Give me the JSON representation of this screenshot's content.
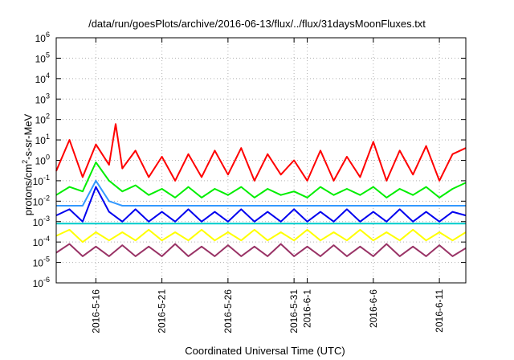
{
  "chart_data": {
    "type": "line",
    "title": "/data/run/goesPlots/archive/2016-06-13/flux/../flux/31daysMoonFluxes.txt",
    "xlabel": "Coordinated Universal Time (UTC)",
    "ylabel": "protons/cm2-s-sr-MeV",
    "y_scale": "log",
    "ylim": [
      1e-06,
      1000000.0
    ],
    "y_ticks": [
      {
        "value": 1e-06,
        "base": "10",
        "exp": "-6"
      },
      {
        "value": 1e-05,
        "base": "10",
        "exp": "-5"
      },
      {
        "value": 0.0001,
        "base": "10",
        "exp": "-4"
      },
      {
        "value": 0.001,
        "base": "10",
        "exp": "-3"
      },
      {
        "value": 0.01,
        "base": "10",
        "exp": "-2"
      },
      {
        "value": 0.1,
        "base": "10",
        "exp": "-1"
      },
      {
        "value": 1,
        "base": "10",
        "exp": "0"
      },
      {
        "value": 10,
        "base": "10",
        "exp": "1"
      },
      {
        "value": 100,
        "base": "10",
        "exp": "2"
      },
      {
        "value": 1000,
        "base": "10",
        "exp": "3"
      },
      {
        "value": 10000,
        "base": "10",
        "exp": "4"
      },
      {
        "value": 100000,
        "base": "10",
        "exp": "5"
      },
      {
        "value": 1000000,
        "base": "10",
        "exp": "6"
      }
    ],
    "xlim": [
      "2016-05-13",
      "2016-06-13"
    ],
    "x_ticks": [
      {
        "date": "2016-05-16",
        "label": "2016-5-16"
      },
      {
        "date": "2016-05-21",
        "label": "2016-5-21"
      },
      {
        "date": "2016-05-26",
        "label": "2016-5-26"
      },
      {
        "date": "2016-05-31",
        "label": "2016-5-31"
      },
      {
        "date": "2016-06-01",
        "label": "2016-6-1"
      },
      {
        "date": "2016-06-06",
        "label": "2016-6-6"
      },
      {
        "date": "2016-06-11",
        "label": "2016-6-11"
      }
    ],
    "grid": true,
    "legend": "none",
    "series": [
      {
        "color": "#ff0000",
        "points": [
          [
            "2016-05-13",
            0.3
          ],
          [
            "2016-05-14",
            10
          ],
          [
            "2016-05-15",
            0.15
          ],
          [
            "2016-05-16",
            6
          ],
          [
            "2016-05-17",
            0.6
          ],
          [
            "2016-05-17T12:00",
            60
          ],
          [
            "2016-05-18",
            0.4
          ],
          [
            "2016-05-19",
            3
          ],
          [
            "2016-05-20",
            0.15
          ],
          [
            "2016-05-21",
            1.5
          ],
          [
            "2016-05-22",
            0.1
          ],
          [
            "2016-05-23",
            2
          ],
          [
            "2016-05-24",
            0.15
          ],
          [
            "2016-05-25",
            3
          ],
          [
            "2016-05-26",
            0.2
          ],
          [
            "2016-05-27",
            4
          ],
          [
            "2016-05-28",
            0.1
          ],
          [
            "2016-05-29",
            2
          ],
          [
            "2016-05-30",
            0.2
          ],
          [
            "2016-05-31",
            1
          ],
          [
            "2016-06-01",
            0.1
          ],
          [
            "2016-06-02",
            3
          ],
          [
            "2016-06-03",
            0.1
          ],
          [
            "2016-06-04",
            1.5
          ],
          [
            "2016-06-05",
            0.15
          ],
          [
            "2016-06-06",
            8
          ],
          [
            "2016-06-07",
            0.1
          ],
          [
            "2016-06-08",
            3
          ],
          [
            "2016-06-09",
            0.2
          ],
          [
            "2016-06-10",
            5
          ],
          [
            "2016-06-11",
            0.1
          ],
          [
            "2016-06-12",
            2
          ],
          [
            "2016-06-13",
            4
          ]
        ]
      },
      {
        "color": "#00ee00",
        "points": [
          [
            "2016-05-13",
            0.02
          ],
          [
            "2016-05-14",
            0.05
          ],
          [
            "2016-05-15",
            0.03
          ],
          [
            "2016-05-16",
            0.8
          ],
          [
            "2016-05-17",
            0.1
          ],
          [
            "2016-05-18",
            0.03
          ],
          [
            "2016-05-19",
            0.06
          ],
          [
            "2016-05-20",
            0.02
          ],
          [
            "2016-05-21",
            0.04
          ],
          [
            "2016-05-22",
            0.015
          ],
          [
            "2016-05-23",
            0.05
          ],
          [
            "2016-05-24",
            0.015
          ],
          [
            "2016-05-25",
            0.04
          ],
          [
            "2016-05-26",
            0.02
          ],
          [
            "2016-05-27",
            0.05
          ],
          [
            "2016-05-28",
            0.015
          ],
          [
            "2016-05-29",
            0.04
          ],
          [
            "2016-05-30",
            0.02
          ],
          [
            "2016-05-31",
            0.03
          ],
          [
            "2016-06-01",
            0.015
          ],
          [
            "2016-06-02",
            0.05
          ],
          [
            "2016-06-03",
            0.02
          ],
          [
            "2016-06-04",
            0.04
          ],
          [
            "2016-06-05",
            0.02
          ],
          [
            "2016-06-06",
            0.05
          ],
          [
            "2016-06-07",
            0.015
          ],
          [
            "2016-06-08",
            0.04
          ],
          [
            "2016-06-09",
            0.02
          ],
          [
            "2016-06-10",
            0.05
          ],
          [
            "2016-06-11",
            0.015
          ],
          [
            "2016-06-12",
            0.04
          ],
          [
            "2016-06-13",
            0.08
          ]
        ]
      },
      {
        "color": "#3399ff",
        "points": [
          [
            "2016-05-13",
            0.006
          ],
          [
            "2016-05-15",
            0.006
          ],
          [
            "2016-05-16",
            0.1
          ],
          [
            "2016-05-17",
            0.01
          ],
          [
            "2016-05-18",
            0.006
          ],
          [
            "2016-05-21",
            0.006
          ],
          [
            "2016-05-26",
            0.006
          ],
          [
            "2016-05-31",
            0.006
          ],
          [
            "2016-06-06",
            0.006
          ],
          [
            "2016-06-11",
            0.006
          ],
          [
            "2016-06-13",
            0.006
          ]
        ]
      },
      {
        "color": "#0000ee",
        "points": [
          [
            "2016-05-13",
            0.002
          ],
          [
            "2016-05-14",
            0.004
          ],
          [
            "2016-05-15",
            0.001
          ],
          [
            "2016-05-16",
            0.05
          ],
          [
            "2016-05-17",
            0.003
          ],
          [
            "2016-05-18",
            0.001
          ],
          [
            "2016-05-19",
            0.004
          ],
          [
            "2016-05-20",
            0.001
          ],
          [
            "2016-05-21",
            0.003
          ],
          [
            "2016-05-22",
            0.001
          ],
          [
            "2016-05-23",
            0.004
          ],
          [
            "2016-05-24",
            0.001
          ],
          [
            "2016-05-25",
            0.003
          ],
          [
            "2016-05-26",
            0.001
          ],
          [
            "2016-05-27",
            0.004
          ],
          [
            "2016-05-28",
            0.001
          ],
          [
            "2016-05-29",
            0.003
          ],
          [
            "2016-05-30",
            0.001
          ],
          [
            "2016-05-31",
            0.004
          ],
          [
            "2016-06-01",
            0.001
          ],
          [
            "2016-06-02",
            0.003
          ],
          [
            "2016-06-03",
            0.001
          ],
          [
            "2016-06-04",
            0.004
          ],
          [
            "2016-06-05",
            0.001
          ],
          [
            "2016-06-06",
            0.003
          ],
          [
            "2016-06-07",
            0.001
          ],
          [
            "2016-06-08",
            0.004
          ],
          [
            "2016-06-09",
            0.001
          ],
          [
            "2016-06-10",
            0.003
          ],
          [
            "2016-06-11",
            0.001
          ],
          [
            "2016-06-12",
            0.003
          ],
          [
            "2016-06-13",
            0.002
          ]
        ]
      },
      {
        "color": "#00cccc",
        "points": [
          [
            "2016-05-13",
            0.0008
          ],
          [
            "2016-05-21",
            0.0008
          ],
          [
            "2016-05-31",
            0.0008
          ],
          [
            "2016-06-13",
            0.0008
          ]
        ]
      },
      {
        "color": "#ffff00",
        "points": [
          [
            "2016-05-13",
            0.0002
          ],
          [
            "2016-05-14",
            0.0004
          ],
          [
            "2016-05-15",
            0.0001
          ],
          [
            "2016-05-16",
            0.0003
          ],
          [
            "2016-05-17",
            0.00012
          ],
          [
            "2016-05-18",
            0.0003
          ],
          [
            "2016-05-19",
            0.00012
          ],
          [
            "2016-05-20",
            0.0004
          ],
          [
            "2016-05-21",
            0.00012
          ],
          [
            "2016-05-22",
            0.0003
          ],
          [
            "2016-05-23",
            0.00012
          ],
          [
            "2016-05-24",
            0.0004
          ],
          [
            "2016-05-25",
            0.00012
          ],
          [
            "2016-05-26",
            0.0003
          ],
          [
            "2016-05-27",
            0.00012
          ],
          [
            "2016-05-28",
            0.0004
          ],
          [
            "2016-05-29",
            0.00012
          ],
          [
            "2016-05-30",
            0.0003
          ],
          [
            "2016-05-31",
            0.00012
          ],
          [
            "2016-06-01",
            0.0004
          ],
          [
            "2016-06-02",
            0.00012
          ],
          [
            "2016-06-03",
            0.0003
          ],
          [
            "2016-06-04",
            0.00012
          ],
          [
            "2016-06-05",
            0.0004
          ],
          [
            "2016-06-06",
            0.00012
          ],
          [
            "2016-06-07",
            0.0003
          ],
          [
            "2016-06-08",
            0.00012
          ],
          [
            "2016-06-09",
            0.0004
          ],
          [
            "2016-06-10",
            0.00012
          ],
          [
            "2016-06-11",
            0.0003
          ],
          [
            "2016-06-12",
            0.00012
          ],
          [
            "2016-06-13",
            0.0003
          ]
        ]
      },
      {
        "color": "#993366",
        "points": [
          [
            "2016-05-13",
            3e-05
          ],
          [
            "2016-05-14",
            8e-05
          ],
          [
            "2016-05-15",
            2e-05
          ],
          [
            "2016-05-16",
            6e-05
          ],
          [
            "2016-05-17",
            2e-05
          ],
          [
            "2016-05-18",
            7e-05
          ],
          [
            "2016-05-19",
            2e-05
          ],
          [
            "2016-05-20",
            6e-05
          ],
          [
            "2016-05-21",
            2e-05
          ],
          [
            "2016-05-22",
            8e-05
          ],
          [
            "2016-05-23",
            2e-05
          ],
          [
            "2016-05-24",
            6e-05
          ],
          [
            "2016-05-25",
            2e-05
          ],
          [
            "2016-05-26",
            7e-05
          ],
          [
            "2016-05-27",
            2e-05
          ],
          [
            "2016-05-28",
            6e-05
          ],
          [
            "2016-05-29",
            2e-05
          ],
          [
            "2016-05-30",
            8e-05
          ],
          [
            "2016-05-31",
            2e-05
          ],
          [
            "2016-06-01",
            6e-05
          ],
          [
            "2016-06-02",
            2e-05
          ],
          [
            "2016-06-03",
            7e-05
          ],
          [
            "2016-06-04",
            2e-05
          ],
          [
            "2016-06-05",
            6e-05
          ],
          [
            "2016-06-06",
            2e-05
          ],
          [
            "2016-06-07",
            8e-05
          ],
          [
            "2016-06-08",
            2e-05
          ],
          [
            "2016-06-09",
            6e-05
          ],
          [
            "2016-06-10",
            2e-05
          ],
          [
            "2016-06-11",
            7e-05
          ],
          [
            "2016-06-12",
            2e-05
          ],
          [
            "2016-06-13",
            5e-05
          ]
        ]
      }
    ]
  }
}
